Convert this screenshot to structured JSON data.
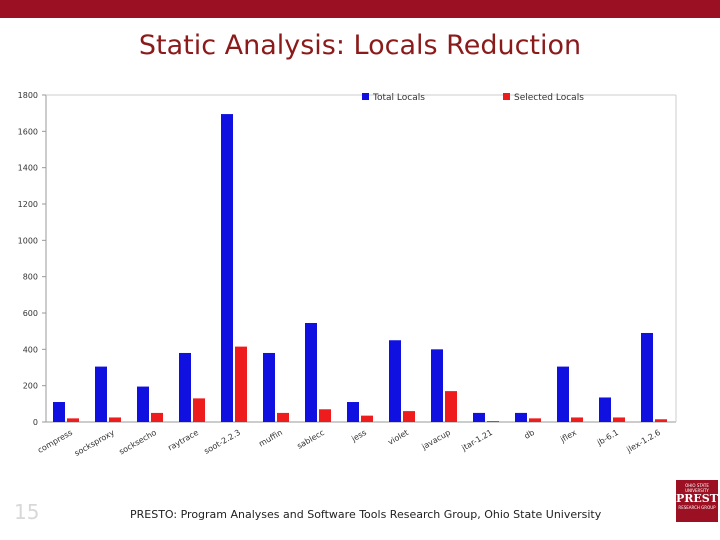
{
  "slide": {
    "title": "Static Analysis: Locals Reduction",
    "page_number": "15",
    "footer": "PRESTO: Program Analyses and Software Tools Research Group, Ohio State University",
    "logo_lines": [
      "OHIO STATE UNIVERSITY",
      "PRESTO",
      "RESEARCH GROUP"
    ]
  },
  "colors": {
    "bar_total": "#1010e0",
    "bar_selected": "#ee1c1c",
    "accent": "#9b1022"
  },
  "chart_data": {
    "type": "bar",
    "title": "",
    "xlabel": "",
    "ylabel": "",
    "ylim": [
      0,
      1800
    ],
    "yticks": [
      0,
      200,
      400,
      600,
      800,
      1000,
      1200,
      1400,
      1600,
      1800
    ],
    "grid": false,
    "legend_position": "top",
    "categories": [
      "compress",
      "socksproxy",
      "socksecho",
      "raytrace",
      "soot-2.2.3",
      "muffin",
      "sablecc",
      "jess",
      "violet",
      "javacup",
      "jtar-1.21",
      "db",
      "jflex",
      "jb-6.1",
      "jlex-1.2.6"
    ],
    "series": [
      {
        "name": "Total Locals",
        "values": [
          110,
          305,
          195,
          380,
          1695,
          380,
          545,
          110,
          450,
          400,
          50,
          50,
          305,
          135,
          490
        ]
      },
      {
        "name": "Selected Locals",
        "values": [
          20,
          25,
          50,
          130,
          415,
          50,
          70,
          35,
          60,
          170,
          5,
          20,
          25,
          25,
          15
        ]
      }
    ]
  }
}
